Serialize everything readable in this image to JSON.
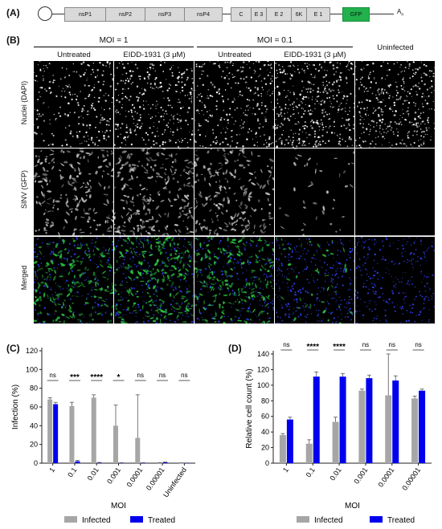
{
  "panels": {
    "a": "(A)",
    "b": "(B)",
    "c": "(C)",
    "d": "(D)"
  },
  "genome": {
    "segments": [
      "nsP1",
      "nsP2",
      "nsP3",
      "nsP4",
      "C",
      "E 3",
      "E 2",
      "6K",
      "E 1",
      "GFP"
    ],
    "polya": "A",
    "polya_sub": "n",
    "gfp_color": "#22b14c"
  },
  "micrographs": {
    "moi_groups": [
      "MOI = 1",
      "MOI = 0.1"
    ],
    "conditions": [
      "Untreated",
      "EIDD-1931 (3 μM)",
      "Untreated",
      "EIDD-1931 (3 μM)",
      "Uninfected"
    ],
    "rows": [
      "Nuclei (DAPI)",
      "SINV (GFP)",
      "Merged"
    ]
  },
  "chart_data": [
    {
      "type": "bar",
      "panel": "C",
      "categories": [
        "1",
        "0.1",
        "0.01",
        "0.001",
        "0.0001",
        "0.00001",
        "Uninfected"
      ],
      "series": [
        {
          "name": "Infected",
          "color": "#a6a6a6",
          "values": [
            68,
            61,
            70,
            40,
            27,
            0.3,
            0.2
          ],
          "errors": [
            2,
            4,
            3,
            22,
            46,
            0.3,
            0.2
          ]
        },
        {
          "name": "Treated",
          "color": "#0000ee",
          "values": [
            63,
            2,
            0.5,
            0.3,
            0.3,
            0.8,
            0.2
          ],
          "errors": [
            2,
            1,
            0.3,
            0.2,
            0.2,
            0.4,
            0.1
          ]
        }
      ],
      "significance": [
        "ns",
        "***",
        "****",
        "*",
        "ns",
        "ns",
        "ns"
      ],
      "ylabel": "Infection (%)",
      "xlabel": "MOI",
      "ylim": [
        0,
        120
      ],
      "yticks": [
        0,
        20,
        40,
        60,
        80,
        100,
        120
      ],
      "legend": "bottom"
    },
    {
      "type": "bar",
      "panel": "D",
      "categories": [
        "1",
        "0.1",
        "0.01",
        "0.001",
        "0.0001",
        "0.00001"
      ],
      "series": [
        {
          "name": "Infected",
          "color": "#a6a6a6",
          "values": [
            36,
            25,
            53,
            93,
            87,
            83
          ],
          "errors": [
            2,
            5,
            6,
            2,
            53,
            3
          ]
        },
        {
          "name": "Treated",
          "color": "#0000ee",
          "values": [
            56,
            111,
            111,
            109,
            106,
            93
          ],
          "errors": [
            3,
            6,
            4,
            4,
            6,
            2
          ]
        }
      ],
      "significance": [
        "ns",
        "****",
        "****",
        "ns",
        "ns",
        "ns"
      ],
      "ylabel": "Relative cell count (%)",
      "xlabel": "MOI",
      "ylim": [
        0,
        140
      ],
      "yticks": [
        0,
        20,
        40,
        60,
        80,
        100,
        120,
        140
      ],
      "legend": "bottom"
    }
  ]
}
